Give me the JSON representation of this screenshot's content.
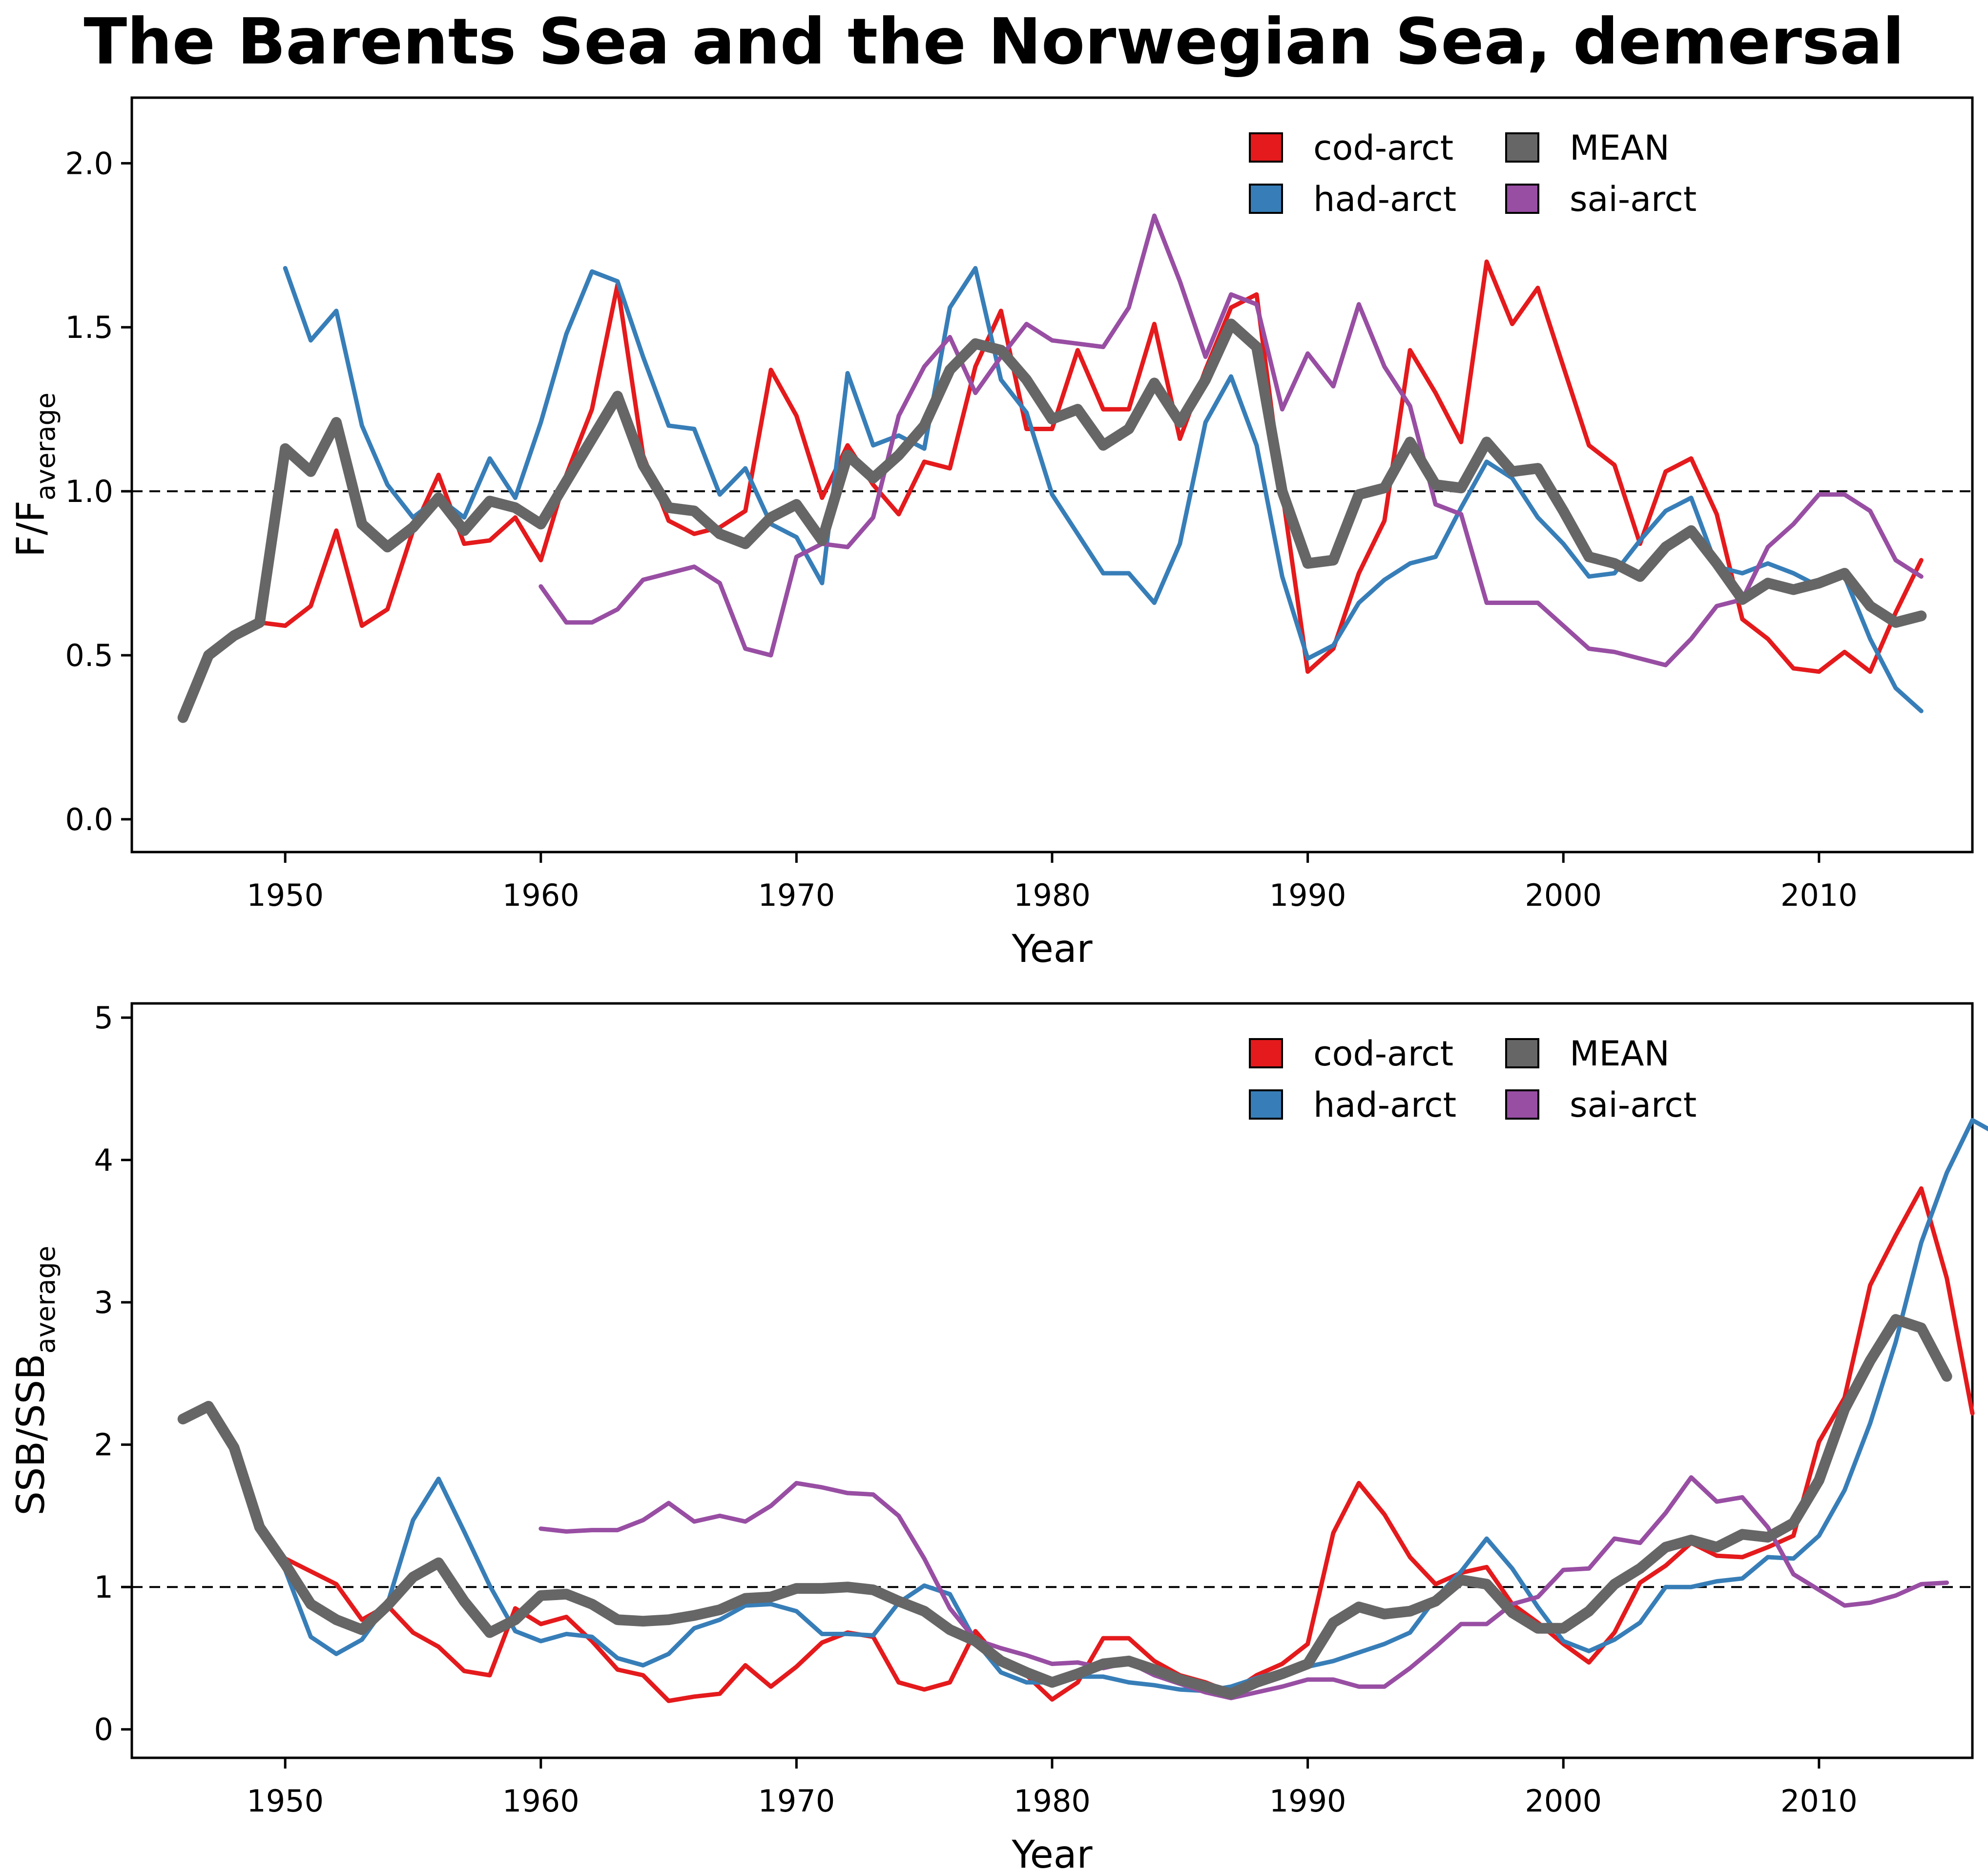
{
  "title": "The Barents Sea and the Norwegian Sea, demersal",
  "colors": {
    "cod-arct": "#e41a1c",
    "had-arct": "#377eb8",
    "sai-arct": "#984ea3",
    "MEAN": "#666666"
  },
  "chart_data": [
    {
      "type": "line",
      "ylabel_main": "F/F",
      "ylabel_sub": "average",
      "xlabel": "Year",
      "xlim": [
        1944,
        2016
      ],
      "ylim": [
        -0.1,
        2.2
      ],
      "xticks": [
        1950,
        1960,
        1970,
        1980,
        1990,
        2000,
        2010
      ],
      "yticks": [
        0.0,
        0.5,
        1.0,
        1.5,
        2.0
      ],
      "ytick_labels": [
        "0.0",
        "0.5",
        "1.0",
        "1.5",
        "2.0"
      ],
      "reference_line": 1.0,
      "legend_position": "top-right",
      "legend": [
        "cod-arct",
        "MEAN",
        "had-arct",
        "sai-arct"
      ],
      "series": [
        {
          "name": "cod-arct",
          "x_start": 1946,
          "values": [
            0.31,
            0.5,
            0.56,
            0.6,
            0.59,
            0.65,
            0.88,
            0.59,
            0.64,
            0.88,
            1.05,
            0.84,
            0.85,
            0.92,
            0.79,
            1.05,
            1.25,
            1.63,
            1.11,
            0.91,
            0.87,
            0.89,
            0.94,
            1.37,
            1.23,
            0.98,
            1.14,
            1.02,
            0.93,
            1.09,
            1.07,
            1.38,
            1.55,
            1.19,
            1.19,
            1.43,
            1.25,
            1.25,
            1.51,
            1.16,
            1.37,
            1.56,
            1.6,
            1.0,
            0.45,
            0.52,
            0.75,
            0.91,
            1.43,
            1.3,
            1.15,
            1.7,
            1.51,
            1.62,
            1.38,
            1.14,
            1.08,
            0.84,
            1.06,
            1.1,
            0.93,
            0.61,
            0.55,
            0.46,
            0.45,
            0.51,
            0.45,
            0.63,
            0.79
          ]
        },
        {
          "name": "had-arct",
          "x_start": 1950,
          "values": [
            1.68,
            1.46,
            1.55,
            1.2,
            1.02,
            0.92,
            0.98,
            0.92,
            1.1,
            0.98,
            1.21,
            1.48,
            1.67,
            1.64,
            1.41,
            1.2,
            1.19,
            0.99,
            1.07,
            0.9,
            0.86,
            0.72,
            1.36,
            1.14,
            1.17,
            1.13,
            1.56,
            1.68,
            1.34,
            1.24,
            0.99,
            0.87,
            0.75,
            0.75,
            0.66,
            0.84,
            1.21,
            1.35,
            1.14,
            0.74,
            0.49,
            0.53,
            0.66,
            0.73,
            0.78,
            0.8,
            0.95,
            1.09,
            1.04,
            0.92,
            0.84,
            0.74,
            0.75,
            0.85,
            0.94,
            0.98,
            0.77,
            0.75,
            0.78,
            0.75,
            0.71,
            0.74,
            0.55,
            0.4,
            0.33
          ]
        },
        {
          "name": "sai-arct",
          "x_start": 1960,
          "values": [
            0.71,
            0.6,
            0.6,
            0.64,
            0.73,
            0.75,
            0.77,
            0.72,
            0.52,
            0.5,
            0.8,
            0.84,
            0.83,
            0.92,
            1.23,
            1.38,
            1.47,
            1.3,
            1.41,
            1.51,
            1.46,
            1.45,
            1.44,
            1.56,
            1.84,
            1.64,
            1.41,
            1.6,
            1.57,
            1.25,
            1.42,
            1.32,
            1.57,
            1.38,
            1.26,
            0.96,
            0.93,
            0.66,
            0.66,
            0.66,
            0.59,
            0.52,
            0.51,
            0.49,
            0.47,
            0.55,
            0.65,
            0.67,
            0.83,
            0.9,
            0.99,
            0.99,
            0.94,
            0.79,
            0.74
          ]
        },
        {
          "name": "MEAN",
          "x_start": 1946,
          "thick": true,
          "values": [
            0.31,
            0.5,
            0.56,
            0.6,
            1.13,
            1.06,
            1.21,
            0.9,
            0.83,
            0.89,
            0.98,
            0.88,
            0.97,
            0.95,
            0.9,
            1.03,
            1.16,
            1.29,
            1.08,
            0.95,
            0.94,
            0.87,
            0.84,
            0.92,
            0.96,
            0.85,
            1.11,
            1.04,
            1.11,
            1.2,
            1.37,
            1.45,
            1.43,
            1.34,
            1.22,
            1.25,
            1.14,
            1.19,
            1.33,
            1.21,
            1.34,
            1.51,
            1.44,
            1.0,
            0.78,
            0.79,
            0.99,
            1.01,
            1.15,
            1.02,
            1.01,
            1.15,
            1.06,
            1.07,
            0.94,
            0.8,
            0.78,
            0.74,
            0.83,
            0.88,
            0.78,
            0.67,
            0.72,
            0.7,
            0.72,
            0.75,
            0.65,
            0.6,
            0.62
          ]
        }
      ]
    },
    {
      "type": "line",
      "ylabel_main": "SSB/SSB",
      "ylabel_sub": "average",
      "xlabel": "Year",
      "xlim": [
        1944,
        2016
      ],
      "ylim": [
        -0.2,
        5.1
      ],
      "xticks": [
        1950,
        1960,
        1970,
        1980,
        1990,
        2000,
        2010
      ],
      "yticks": [
        0,
        1,
        2,
        3,
        4,
        5
      ],
      "ytick_labels": [
        "0",
        "1",
        "2",
        "3",
        "4",
        "5"
      ],
      "reference_line": 1.0,
      "legend_position": "top-right",
      "legend": [
        "cod-arct",
        "MEAN",
        "had-arct",
        "sai-arct"
      ],
      "series": [
        {
          "name": "cod-arct",
          "x_start": 1946,
          "values": [
            2.18,
            2.27,
            1.98,
            1.42,
            1.2,
            1.11,
            1.02,
            0.77,
            0.87,
            0.68,
            0.58,
            0.41,
            0.38,
            0.85,
            0.74,
            0.79,
            0.62,
            0.42,
            0.38,
            0.2,
            0.23,
            0.25,
            0.45,
            0.3,
            0.44,
            0.61,
            0.68,
            0.65,
            0.33,
            0.28,
            0.33,
            0.69,
            0.48,
            0.38,
            0.21,
            0.33,
            0.64,
            0.64,
            0.48,
            0.38,
            0.33,
            0.26,
            0.38,
            0.46,
            0.6,
            1.38,
            1.73,
            1.51,
            1.21,
            1.02,
            1.1,
            1.14,
            0.88,
            0.75,
            0.6,
            0.47,
            0.68,
            1.03,
            1.15,
            1.31,
            1.22,
            1.21,
            1.28,
            1.36,
            2.02,
            2.33,
            3.12,
            3.47,
            3.8,
            3.17,
            2.22
          ]
        },
        {
          "name": "had-arct",
          "x_start": 1946,
          "values": [
            2.18,
            2.27,
            1.98,
            1.42,
            1.12,
            0.65,
            0.53,
            0.63,
            0.88,
            1.47,
            1.76,
            1.39,
            1.01,
            0.69,
            0.62,
            0.67,
            0.65,
            0.5,
            0.45,
            0.53,
            0.71,
            0.77,
            0.87,
            0.88,
            0.83,
            0.67,
            0.67,
            0.66,
            0.89,
            1.01,
            0.95,
            0.62,
            0.4,
            0.33,
            0.33,
            0.37,
            0.37,
            0.33,
            0.31,
            0.28,
            0.27,
            0.3,
            0.36,
            0.41,
            0.44,
            0.48,
            0.54,
            0.6,
            0.68,
            0.92,
            1.11,
            1.34,
            1.13,
            0.86,
            0.62,
            0.55,
            0.63,
            0.75,
            1.0,
            1.0,
            1.04,
            1.06,
            1.21,
            1.2,
            1.36,
            1.68,
            2.15,
            2.72,
            3.42,
            3.91,
            4.28,
            4.18
          ]
        },
        {
          "name": "sai-arct",
          "x_start": 1960,
          "values": [
            1.41,
            1.39,
            1.4,
            1.4,
            1.47,
            1.59,
            1.46,
            1.5,
            1.46,
            1.57,
            1.73,
            1.7,
            1.66,
            1.65,
            1.5,
            1.2,
            0.85,
            0.63,
            0.57,
            0.52,
            0.46,
            0.47,
            0.43,
            0.47,
            0.38,
            0.32,
            0.26,
            0.22,
            0.26,
            0.3,
            0.35,
            0.35,
            0.3,
            0.3,
            0.43,
            0.58,
            0.74,
            0.74,
            0.88,
            0.93,
            1.12,
            1.13,
            1.34,
            1.31,
            1.52,
            1.77,
            1.6,
            1.63,
            1.42,
            1.09,
            0.98,
            0.87,
            0.89,
            0.94,
            1.02,
            1.03
          ]
        },
        {
          "name": "MEAN",
          "x_start": 1946,
          "thick": true,
          "values": [
            2.18,
            2.27,
            1.98,
            1.42,
            1.16,
            0.88,
            0.77,
            0.7,
            0.87,
            1.07,
            1.17,
            0.9,
            0.68,
            0.77,
            0.94,
            0.95,
            0.88,
            0.77,
            0.76,
            0.77,
            0.8,
            0.84,
            0.92,
            0.93,
            0.99,
            0.99,
            1.0,
            0.98,
            0.9,
            0.83,
            0.7,
            0.62,
            0.48,
            0.4,
            0.33,
            0.39,
            0.46,
            0.48,
            0.42,
            0.35,
            0.3,
            0.25,
            0.33,
            0.39,
            0.46,
            0.75,
            0.86,
            0.81,
            0.83,
            0.9,
            1.05,
            1.02,
            0.82,
            0.71,
            0.71,
            0.83,
            1.02,
            1.13,
            1.28,
            1.33,
            1.28,
            1.37,
            1.35,
            1.45,
            1.75,
            2.25,
            2.59,
            2.88,
            2.82,
            2.48
          ]
        }
      ]
    }
  ]
}
